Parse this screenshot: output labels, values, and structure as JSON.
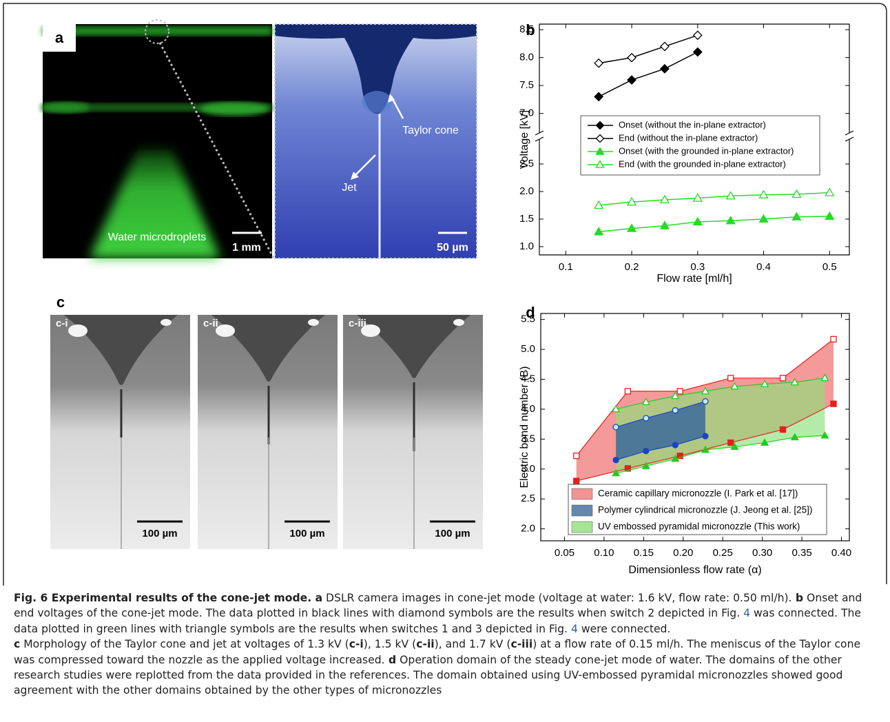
{
  "panel_a": {
    "label": "a",
    "left_image": {
      "caption": "Water microdroplets",
      "scale": "1 mm"
    },
    "right_image": {
      "labels": [
        "Taylor cone",
        "Jet"
      ],
      "scale": "50 µm"
    }
  },
  "panel_c": {
    "label": "c",
    "images": [
      {
        "label": "c-i",
        "scale": "100 µm"
      },
      {
        "label": "c-ii",
        "scale": "100 µm"
      },
      {
        "label": "c-iii",
        "scale": "100 µm"
      }
    ]
  },
  "chart_data": [
    {
      "type": "line",
      "panel": "b",
      "xlabel": "Flow rate [ml/h]",
      "ylabel": "Voltage [kV]",
      "xlim": [
        0.06,
        0.53
      ],
      "xticks": [
        0.1,
        0.2,
        0.3,
        0.4,
        0.5
      ],
      "ylim": [
        0.85,
        2.95
      ],
      "yticks": [
        {
          "value": 1,
          "label": "1.0"
        },
        1.5,
        {
          "value": 2,
          "label": "2.0"
        },
        2.5
      ],
      "ylim_upper": [
        6.65,
        8.6
      ],
      "yticks_upper": [
        {
          "value": 7,
          "label": "7.0"
        },
        7.5,
        {
          "value": 8,
          "label": "8.0"
        },
        8.5
      ],
      "series": [
        {
          "name": "Onset (without the in-plane extractor)",
          "color": "#000000",
          "marker": "diamond",
          "filled": true,
          "axis": "upper",
          "x": [
            0.15,
            0.2,
            0.25,
            0.3
          ],
          "values": [
            7.3,
            7.6,
            7.8,
            8.1
          ]
        },
        {
          "name": "End (without the in-plane extractor)",
          "color": "#000000",
          "marker": "diamond",
          "filled": false,
          "axis": "upper",
          "x": [
            0.15,
            0.2,
            0.25,
            0.3
          ],
          "values": [
            7.9,
            8.0,
            8.2,
            8.4
          ]
        },
        {
          "name": "Onset (with the grounded in-plane extractor)",
          "color": "#22dd22",
          "marker": "triangle",
          "filled": true,
          "axis": "lower",
          "x": [
            0.15,
            0.2,
            0.25,
            0.3,
            0.35,
            0.4,
            0.45,
            0.5
          ],
          "values": [
            1.27,
            1.33,
            1.38,
            1.45,
            1.47,
            1.5,
            1.54,
            1.55
          ]
        },
        {
          "name": "End (with the grounded in-plane extractor)",
          "color": "#22dd22",
          "marker": "triangle",
          "filled": false,
          "axis": "lower",
          "x": [
            0.15,
            0.2,
            0.25,
            0.3,
            0.35,
            0.4,
            0.45,
            0.5
          ],
          "values": [
            1.75,
            1.81,
            1.85,
            1.88,
            1.92,
            1.94,
            1.95,
            1.98
          ]
        }
      ]
    },
    {
      "type": "band",
      "panel": "d",
      "xlabel": "Dimensionless flow rate (α)",
      "ylabel": "Electric bond number (B)",
      "xlim": [
        0.02,
        0.41
      ],
      "xticks": [
        0.05,
        {
          "value": 0.1,
          "label": "0.10"
        },
        0.15,
        {
          "value": 0.2,
          "label": "0.20"
        },
        0.25,
        {
          "value": 0.3,
          "label": "0.30"
        },
        0.35,
        {
          "value": 0.4,
          "label": "0.40"
        }
      ],
      "ylim": [
        1.8,
        5.6
      ],
      "yticks": [
        {
          "value": 2,
          "label": "2.0"
        },
        2.5,
        {
          "value": 3,
          "label": "3.0"
        },
        3.5,
        {
          "value": 4,
          "label": "4.0"
        },
        4.5,
        {
          "value": 5,
          "label": "5.0"
        },
        5.5
      ],
      "series": [
        {
          "name": "Ceramic capillary micronozzle (I. Park et al. [17])",
          "color": "#f07878",
          "marker_color": "#e3201c",
          "marker": "square",
          "open_fill": "#ffffff",
          "x": [
            0.065,
            0.13,
            0.196,
            0.26,
            0.326,
            0.39
          ],
          "upper": [
            3.22,
            4.3,
            4.3,
            4.52,
            4.52,
            5.17
          ],
          "lower": [
            2.8,
            3.01,
            3.22,
            3.44,
            3.66,
            4.09
          ]
        },
        {
          "name": "UV embossed pyramidal micronozzle (This work)",
          "color": "#8ee07a",
          "marker_color": "#22cc22",
          "marker": "triangle",
          "open_fill": "#ffffff",
          "x": [
            0.115,
            0.153,
            0.19,
            0.228,
            0.265,
            0.303,
            0.341,
            0.379
          ],
          "upper": [
            4.0,
            4.12,
            4.22,
            4.3,
            4.38,
            4.42,
            4.45,
            4.52
          ],
          "lower": [
            2.93,
            3.05,
            3.17,
            3.32,
            3.37,
            3.44,
            3.53,
            3.56
          ]
        },
        {
          "name": "Polymer cylindrical micronozzle (J. Jeong et al. [25])",
          "color": "#3d6a9a",
          "marker_color": "#1a45c8",
          "marker": "circle",
          "open_fill": "#bff0f0",
          "x": [
            0.115,
            0.153,
            0.19,
            0.228
          ],
          "upper": [
            3.7,
            3.85,
            3.98,
            4.13
          ],
          "lower": [
            3.15,
            3.3,
            3.4,
            3.55
          ]
        }
      ],
      "legend_order": [
        0,
        2,
        1
      ]
    }
  ],
  "caption": [
    {
      "text": "Fig. 6 Experimental results of the cone-jet mode.",
      "style": "bold"
    },
    {
      "text": " a",
      "style": "bold"
    },
    {
      "text": " DSLR camera images in cone-jet mode (voltage at water: 1.6 kV, flow rate: 0.50 ml/h).",
      "style": "normal"
    },
    {
      "text": " b",
      "style": "bold"
    },
    {
      "text": " Onset and end voltages of the cone-jet mode. The data plotted in black lines with diamond symbols are the results when switch 2 depicted in Fig.",
      "style": "normal"
    },
    {
      "text": " 4",
      "style": "link"
    },
    {
      "text": " was connected. The data plotted in green lines with triangle symbols are the results when switches 1 and 3 depicted in Fig.",
      "style": "normal"
    },
    {
      "text": " 4",
      "style": "link"
    },
    {
      "text": " were connected.",
      "style": "normal"
    },
    {
      "text": "c",
      "style": "bold-break"
    },
    {
      "text": " Morphology of the Taylor cone and jet at voltages of 1.3 kV (",
      "style": "normal"
    },
    {
      "text": "c-i",
      "style": "bold"
    },
    {
      "text": "), 1.5 kV (",
      "style": "normal"
    },
    {
      "text": "c-ii",
      "style": "bold"
    },
    {
      "text": "), and 1.7 kV (",
      "style": "normal"
    },
    {
      "text": "c-iii",
      "style": "bold"
    },
    {
      "text": ") at a flow rate of 0.15 ml/h. The meniscus of the Taylor cone was compressed toward the nozzle as the applied voltage increased.",
      "style": "normal"
    },
    {
      "text": " d",
      "style": "bold"
    },
    {
      "text": " Operation domain of the steady cone-jet mode of water. The domains of the other research studies were replotted from the data provided in the references. The domain obtained using UV-embossed pyramidal micronozzles showed good agreement with the other domains obtained by the other types of micronozzles",
      "style": "normal"
    }
  ]
}
